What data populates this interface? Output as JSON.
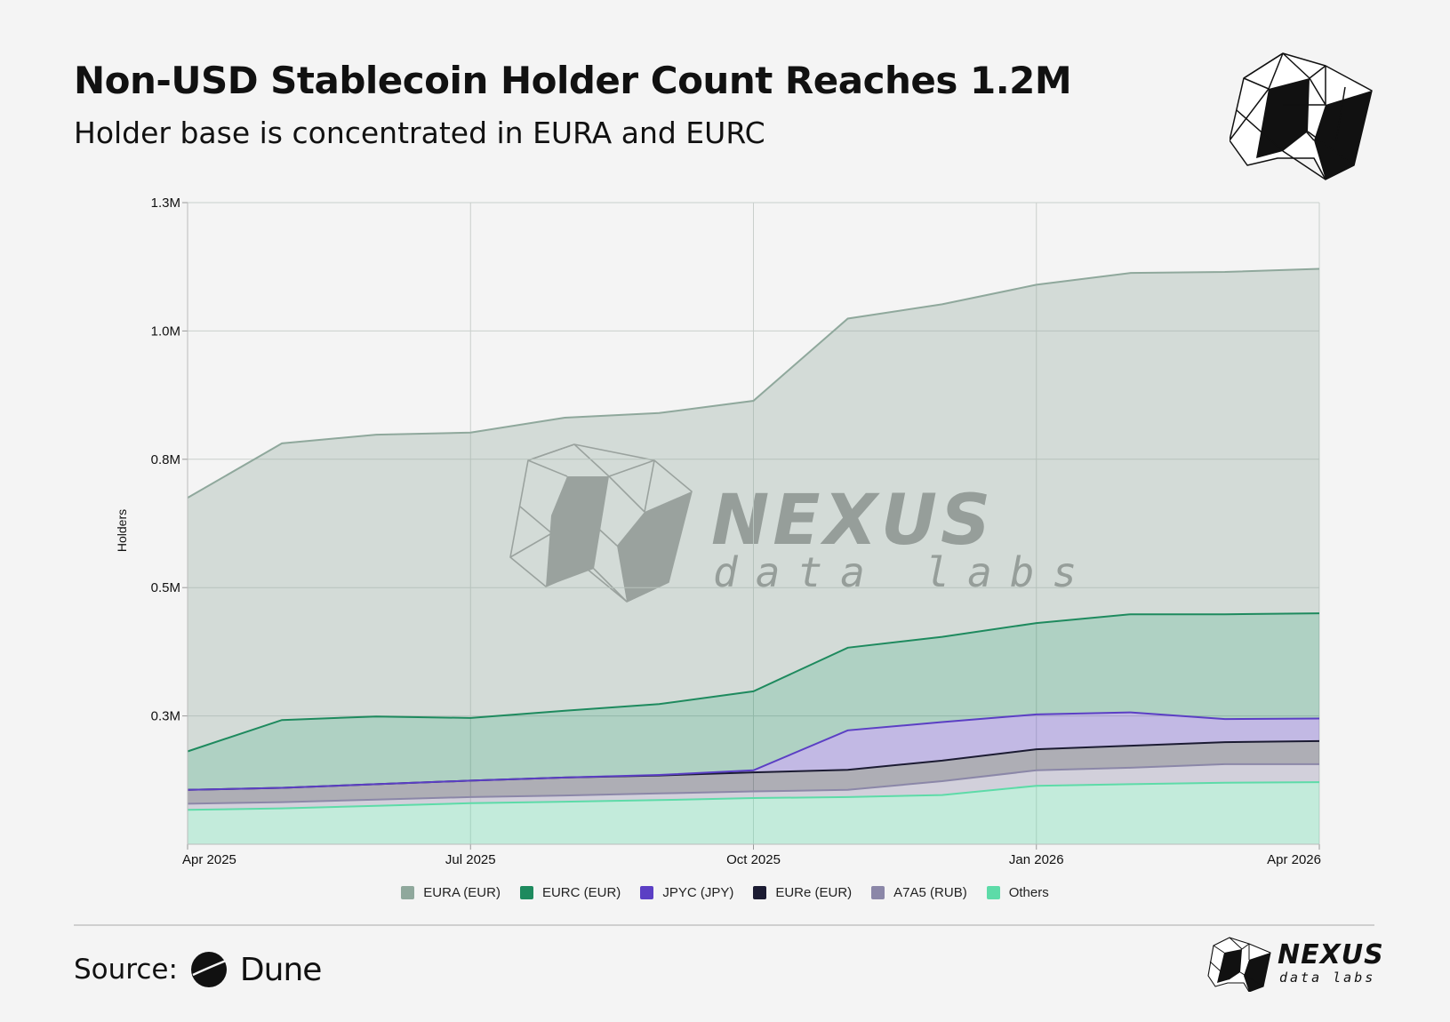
{
  "header": {
    "title": "Non-USD Stablecoin Holder Count Reaches 1.2M",
    "subtitle": "Holder base is concentrated in EURA and EURC"
  },
  "watermark": {
    "word": "NEXUS",
    "sub": "data labs"
  },
  "footer": {
    "source_label": "Source:",
    "source_name": "Dune",
    "brand_word": "NEXUS",
    "brand_sub": "data labs"
  },
  "chart_data": {
    "type": "area",
    "stacked": true,
    "ylabel": "Holders",
    "xlabel": "",
    "yticks": [
      {
        "value": 0.25,
        "label": "0.3M"
      },
      {
        "value": 0.5,
        "label": "0.5M"
      },
      {
        "value": 0.75,
        "label": "0.8M"
      },
      {
        "value": 1.0,
        "label": "1.0M"
      },
      {
        "value": 1.25,
        "label": "1.3M"
      }
    ],
    "ylim": [
      0,
      1.25
    ],
    "xticks": [
      {
        "value": 0,
        "label": "Apr 2025"
      },
      {
        "value": 3,
        "label": "Jul 2025"
      },
      {
        "value": 6,
        "label": "Oct 2025"
      },
      {
        "value": 9,
        "label": "Jan 2026"
      },
      {
        "value": 12,
        "label": "Apr 2026"
      }
    ],
    "x": [
      "Apr 2025",
      "May 2025",
      "Jun 2025",
      "Jul 2025",
      "Aug 2025",
      "Sep 2025",
      "Oct 2025",
      "Nov 2025",
      "Dec 2025",
      "Jan 2026",
      "Feb 2026",
      "Mar 2026",
      "Apr 2026"
    ],
    "grid": true,
    "legend_position": "bottom",
    "series": [
      {
        "name": "Others",
        "color": "#5ddba8",
        "values": [
          0.067,
          0.07,
          0.075,
          0.08,
          0.083,
          0.086,
          0.09,
          0.092,
          0.096,
          0.114,
          0.117,
          0.12,
          0.121
        ]
      },
      {
        "name": "A7A5 (RUB)",
        "color": "#8b87a8",
        "values": [
          0.012,
          0.012,
          0.012,
          0.012,
          0.012,
          0.013,
          0.013,
          0.014,
          0.027,
          0.03,
          0.032,
          0.036,
          0.035
        ]
      },
      {
        "name": "EURe (EUR)",
        "color": "#1b1b32",
        "values": [
          0.027,
          0.028,
          0.03,
          0.032,
          0.035,
          0.035,
          0.037,
          0.039,
          0.04,
          0.041,
          0.043,
          0.043,
          0.045
        ]
      },
      {
        "name": "JPYC (JPY)",
        "color": "#5b3fc4",
        "values": [
          0.0,
          0.0,
          0.0,
          0.0,
          0.0,
          0.001,
          0.004,
          0.077,
          0.075,
          0.068,
          0.065,
          0.045,
          0.044
        ]
      },
      {
        "name": "EURC (EUR)",
        "color": "#1e8a5e",
        "values": [
          0.075,
          0.132,
          0.132,
          0.122,
          0.13,
          0.138,
          0.154,
          0.161,
          0.166,
          0.178,
          0.191,
          0.204,
          0.205
        ]
      },
      {
        "name": "EURA (EUR)",
        "color": "#8fa89c",
        "values": [
          0.494,
          0.539,
          0.549,
          0.556,
          0.571,
          0.567,
          0.566,
          0.641,
          0.648,
          0.659,
          0.665,
          0.667,
          0.671
        ]
      }
    ],
    "legend_order": [
      "EURA (EUR)",
      "EURC (EUR)",
      "JPYC (JPY)",
      "EURe (EUR)",
      "A7A5 (RUB)",
      "Others"
    ]
  }
}
